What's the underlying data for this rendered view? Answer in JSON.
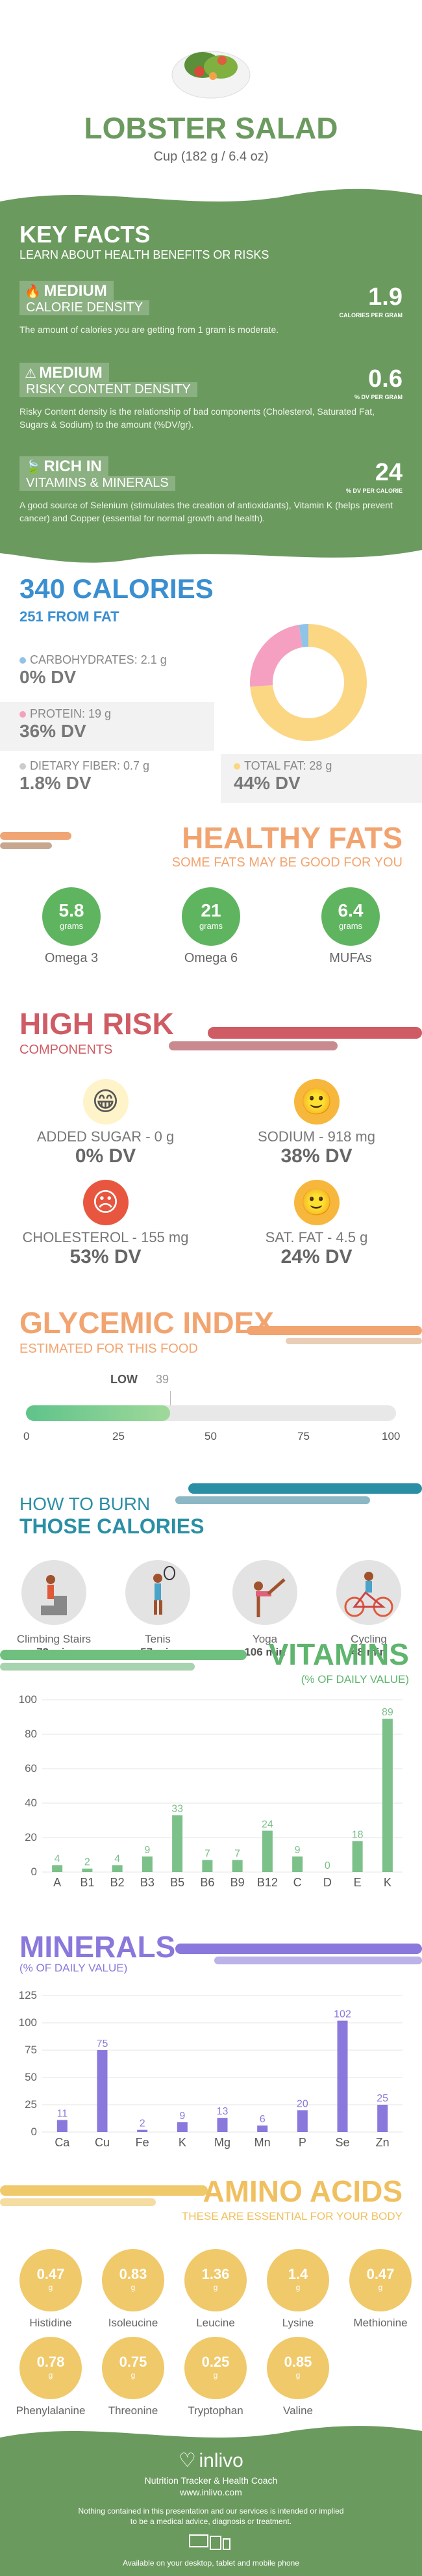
{
  "header": {
    "title": "LOBSTER SALAD",
    "serving": "Cup (182 g / 6.4 oz)"
  },
  "key_facts": {
    "title": "KEY FACTS",
    "subtitle": "LEARN ABOUT HEALTH BENEFITS OR RISKS",
    "items": [
      {
        "level": "MEDIUM",
        "label": "CALORIE DENSITY",
        "value": "1.9",
        "unit": "CALORIES PER GRAM",
        "body": "The amount of calories you are getting from 1 gram is moderate."
      },
      {
        "level": "MEDIUM",
        "label": "RISKY CONTENT DENSITY",
        "value": "0.6",
        "unit": "% DV PER GRAM",
        "body": "Risky Content density is the relationship of bad components (Cholesterol, Saturated Fat, Sugars & Sodium) to the amount (%DV/gr)."
      },
      {
        "level": "RICH  IN",
        "label": "VITAMINS & MINERALS",
        "value": "24",
        "unit": "% DV PER CALORIE",
        "body": "A good source of Selenium (stimulates the creation of antioxidants), Vitamin K (helps prevent cancer) and Copper (essential for normal growth and health)."
      }
    ]
  },
  "calories": {
    "title": "340 CALORIES",
    "from_fat": "251 FROM FAT",
    "carbs_label": "CARBOHYDRATES: 2.1 g",
    "carbs_dv": "0% DV",
    "protein_label": "PROTEIN: 19 g",
    "protein_dv": "36% DV",
    "fiber_label": "DIETARY FIBER: 0.7 g",
    "fiber_dv": "1.8% DV",
    "fat_label": "TOTAL FAT: 28 g",
    "fat_dv": "44% DV",
    "donut": {
      "fat": 251,
      "protein": 80,
      "carbs": 9
    },
    "colors": {
      "fat": "#fbd784",
      "protein": "#f5a0c0",
      "carbs": "#8fc3e8"
    }
  },
  "healthy_fats": {
    "title": "HEALTHY FATS",
    "subtitle": "SOME FATS MAY BE GOOD FOR YOU",
    "items": [
      {
        "value": "5.8",
        "unit": "grams",
        "name": "Omega 3"
      },
      {
        "value": "21",
        "unit": "grams",
        "name": "Omega 6"
      },
      {
        "value": "6.4",
        "unit": "grams",
        "name": "MUFAs"
      }
    ]
  },
  "high_risk": {
    "title": "HIGH RISK",
    "subtitle": "COMPONENTS",
    "items": [
      {
        "label": "ADDED SUGAR - 0 g",
        "dv": "0% DV",
        "face": "😁"
      },
      {
        "label": "SODIUM - 918 mg",
        "dv": "38% DV",
        "face": "🙂"
      },
      {
        "label": "CHOLESTEROL - 155 mg",
        "dv": "53% DV",
        "face": "☹"
      },
      {
        "label": "SAT. FAT - 4.5 g",
        "dv": "24% DV",
        "face": "🙂"
      }
    ]
  },
  "glycemic": {
    "title": "GLYCEMIC INDEX",
    "subtitle": "ESTIMATED FOR THIS FOOD",
    "level": "LOW",
    "value": 39,
    "value_label": "39",
    "ticks": [
      "0",
      "25",
      "50",
      "75",
      "100"
    ]
  },
  "burn": {
    "title1": "HOW TO BURN",
    "title2": "THOSE CALORIES",
    "items": [
      {
        "name": "Climbing Stairs",
        "minutes": "72 min"
      },
      {
        "name": "Tenis",
        "minutes": "57 min"
      },
      {
        "name": "Yoga",
        "minutes": "106 min"
      },
      {
        "name": "Cycling",
        "minutes": "48 min"
      }
    ]
  },
  "chart_data": [
    {
      "type": "bar",
      "title": "VITAMINS",
      "subtitle": "(% OF DAILY VALUE)",
      "categories": [
        "A",
        "B1",
        "B2",
        "B3",
        "B5",
        "B6",
        "B9",
        "B12",
        "C",
        "D",
        "E",
        "K"
      ],
      "values": [
        4,
        2,
        4,
        9,
        33,
        7,
        7,
        24,
        9,
        0,
        18,
        89
      ],
      "labels": [
        "4",
        "2",
        "4",
        "9",
        "33",
        "7",
        "7",
        "24",
        "9",
        "0",
        "18",
        "89"
      ],
      "yticks": [
        "0",
        "20",
        "40",
        "60",
        "80",
        "100"
      ],
      "ylim": [
        0,
        100
      ],
      "color": "#7cc08a"
    },
    {
      "type": "bar",
      "title": "MINERALS",
      "subtitle": "(% OF DAILY VALUE)",
      "categories": [
        "Ca",
        "Cu",
        "Fe",
        "K",
        "Mg",
        "Mn",
        "P",
        "Se",
        "Zn"
      ],
      "values": [
        11,
        75,
        2,
        9,
        13,
        6,
        20,
        102,
        25
      ],
      "labels": [
        "11",
        "75",
        "2",
        "9",
        "13",
        "6",
        "20",
        "102",
        "25"
      ],
      "yticks": [
        "0",
        "25",
        "50",
        "75",
        "100",
        "125"
      ],
      "ylim": [
        0,
        125
      ],
      "color": "#8a78dc"
    }
  ],
  "amino": {
    "title": "AMINO ACIDS",
    "subtitle": "THESE ARE ESSENTIAL FOR YOUR BODY",
    "unit": "g",
    "items": [
      {
        "value": "0.47",
        "name": "Histidine"
      },
      {
        "value": "0.83",
        "name": "Isoleucine"
      },
      {
        "value": "1.36",
        "name": "Leucine"
      },
      {
        "value": "1.4",
        "name": "Lysine"
      },
      {
        "value": "0.47",
        "name": "Methionine"
      },
      {
        "value": "0.78",
        "name": "Phenylalanine"
      },
      {
        "value": "0.75",
        "name": "Threonine"
      },
      {
        "value": "0.25",
        "name": "Tryptophan"
      },
      {
        "value": "0.85",
        "name": "Valine"
      }
    ]
  },
  "footer": {
    "brand": "inlivo",
    "tagline": "Nutrition Tracker & Health Coach",
    "url": "www.inlivo.com",
    "disclaimer1": "Nothing contained in this presentation and our services is intended or implied",
    "disclaimer2": "to be a medical advice, diagnosis or treatment.",
    "available": "Available on your desktop, tablet and mobile phone"
  }
}
